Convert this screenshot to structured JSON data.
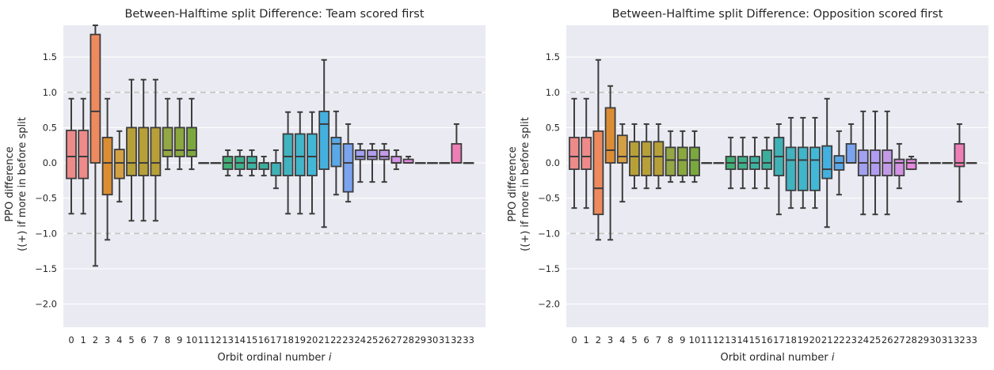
{
  "chart_data": [
    {
      "type": "box",
      "title": "Between-Halftime split Difference: Team scored first",
      "xlabel": "Orbit ordinal number i",
      "ylabel": "PPO difference\n((+) if more in before split",
      "ylim": [
        -2.33,
        1.95
      ],
      "yticks": [
        -2.0,
        -1.5,
        -1.0,
        -0.5,
        0.0,
        0.5,
        1.0,
        1.5
      ],
      "ytick_labels": [
        "−2.0",
        "−1.5",
        "−1.0",
        "−0.5",
        "0.0",
        "0.5",
        "1.0",
        "1.5"
      ],
      "categories": [
        "0",
        "1",
        "2",
        "3",
        "4",
        "5",
        "6",
        "7",
        "8",
        "9",
        "10",
        "11",
        "12",
        "13",
        "14",
        "15",
        "16",
        "17",
        "18",
        "19",
        "20",
        "21",
        "22",
        "23",
        "24",
        "25",
        "26",
        "27",
        "28",
        "29",
        "30",
        "31",
        "32",
        "33"
      ],
      "reference_lines": [
        1.0,
        -1.0
      ],
      "grid": true,
      "boxes": [
        {
          "low": -0.72,
          "q1": -0.22,
          "median": 0.09,
          "q3": 0.46,
          "high": 0.91
        },
        {
          "low": -0.72,
          "q1": -0.22,
          "median": 0.09,
          "q3": 0.46,
          "high": 0.91
        },
        {
          "low": -1.46,
          "q1": 0.0,
          "median": 0.73,
          "q3": 1.82,
          "high": 1.95
        },
        {
          "low": -1.09,
          "q1": -0.45,
          "median": 0.0,
          "q3": 0.36,
          "high": 0.91
        },
        {
          "low": -0.55,
          "q1": -0.22,
          "median": 0.0,
          "q3": 0.19,
          "high": 0.45
        },
        {
          "low": -0.82,
          "q1": -0.18,
          "median": 0.0,
          "q3": 0.5,
          "high": 1.18
        },
        {
          "low": -0.82,
          "q1": -0.18,
          "median": 0.0,
          "q3": 0.5,
          "high": 1.18
        },
        {
          "low": -0.82,
          "q1": -0.18,
          "median": 0.0,
          "q3": 0.5,
          "high": 1.18
        },
        {
          "low": -0.09,
          "q1": 0.09,
          "median": 0.18,
          "q3": 0.5,
          "high": 0.91
        },
        {
          "low": -0.09,
          "q1": 0.09,
          "median": 0.18,
          "q3": 0.5,
          "high": 0.91
        },
        {
          "low": -0.09,
          "q1": 0.09,
          "median": 0.18,
          "q3": 0.5,
          "high": 0.91
        },
        {
          "low": 0.0,
          "q1": 0.0,
          "median": 0.0,
          "q3": 0.0,
          "high": 0.0
        },
        {
          "low": 0.0,
          "q1": 0.0,
          "median": 0.0,
          "q3": 0.0,
          "high": 0.0
        },
        {
          "low": -0.18,
          "q1": -0.09,
          "median": 0.0,
          "q3": 0.09,
          "high": 0.18
        },
        {
          "low": -0.18,
          "q1": -0.09,
          "median": 0.0,
          "q3": 0.09,
          "high": 0.18
        },
        {
          "low": -0.18,
          "q1": -0.09,
          "median": 0.0,
          "q3": 0.09,
          "high": 0.18
        },
        {
          "low": -0.18,
          "q1": -0.09,
          "median": 0.0,
          "q3": 0.0,
          "high": 0.09
        },
        {
          "low": -0.36,
          "q1": -0.18,
          "median": 0.0,
          "q3": 0.0,
          "high": 0.18
        },
        {
          "low": -0.72,
          "q1": -0.18,
          "median": 0.09,
          "q3": 0.41,
          "high": 0.72
        },
        {
          "low": -0.72,
          "q1": -0.18,
          "median": 0.09,
          "q3": 0.41,
          "high": 0.72
        },
        {
          "low": -0.72,
          "q1": -0.18,
          "median": 0.09,
          "q3": 0.41,
          "high": 0.72
        },
        {
          "low": -0.91,
          "q1": -0.09,
          "median": 0.55,
          "q3": 0.73,
          "high": 1.46
        },
        {
          "low": -0.45,
          "q1": -0.05,
          "median": 0.27,
          "q3": 0.36,
          "high": 0.73
        },
        {
          "low": -0.55,
          "q1": -0.41,
          "median": 0.0,
          "q3": 0.27,
          "high": 0.55
        },
        {
          "low": -0.27,
          "q1": 0.05,
          "median": 0.09,
          "q3": 0.18,
          "high": 0.27
        },
        {
          "low": -0.27,
          "q1": 0.05,
          "median": 0.09,
          "q3": 0.18,
          "high": 0.27
        },
        {
          "low": -0.27,
          "q1": 0.05,
          "median": 0.09,
          "q3": 0.18,
          "high": 0.27
        },
        {
          "low": -0.09,
          "q1": 0.0,
          "median": 0.0,
          "q3": 0.09,
          "high": 0.18
        },
        {
          "low": 0.0,
          "q1": 0.0,
          "median": 0.0,
          "q3": 0.05,
          "high": 0.09
        },
        {
          "low": 0.0,
          "q1": 0.0,
          "median": 0.0,
          "q3": 0.0,
          "high": 0.0
        },
        {
          "low": 0.0,
          "q1": 0.0,
          "median": 0.0,
          "q3": 0.0,
          "high": 0.0
        },
        {
          "low": 0.0,
          "q1": 0.0,
          "median": 0.0,
          "q3": 0.0,
          "high": 0.0
        },
        {
          "low": 0.0,
          "q1": 0.0,
          "median": 0.0,
          "q3": 0.27,
          "high": 0.55
        },
        {
          "low": 0.0,
          "q1": 0.0,
          "median": 0.0,
          "q3": 0.0,
          "high": 0.0
        }
      ]
    },
    {
      "type": "box",
      "title": "Between-Halftime split Difference: Opposition scored first",
      "xlabel": "Orbit ordinal number i",
      "ylabel": "PPO difference\n((+) if more in before split",
      "ylim": [
        -2.33,
        1.95
      ],
      "yticks": [
        -2.0,
        -1.5,
        -1.0,
        -0.5,
        0.0,
        0.5,
        1.0,
        1.5
      ],
      "ytick_labels": [
        "−2.0",
        "−1.5",
        "−1.0",
        "−0.5",
        "0.0",
        "0.5",
        "1.0",
        "1.5"
      ],
      "categories": [
        "0",
        "1",
        "2",
        "3",
        "4",
        "5",
        "6",
        "7",
        "8",
        "9",
        "10",
        "11",
        "12",
        "13",
        "14",
        "15",
        "16",
        "17",
        "18",
        "19",
        "20",
        "21",
        "22",
        "23",
        "24",
        "25",
        "26",
        "27",
        "28",
        "29",
        "30",
        "31",
        "32",
        "33"
      ],
      "reference_lines": [
        1.0,
        -1.0
      ],
      "grid": true,
      "boxes": [
        {
          "low": -0.64,
          "q1": -0.09,
          "median": 0.09,
          "q3": 0.36,
          "high": 0.91
        },
        {
          "low": -0.64,
          "q1": -0.09,
          "median": 0.09,
          "q3": 0.36,
          "high": 0.91
        },
        {
          "low": -1.09,
          "q1": -0.73,
          "median": -0.36,
          "q3": 0.45,
          "high": 1.46
        },
        {
          "low": -1.09,
          "q1": 0.0,
          "median": 0.18,
          "q3": 0.78,
          "high": 1.09
        },
        {
          "low": -0.55,
          "q1": 0.0,
          "median": 0.09,
          "q3": 0.39,
          "high": 0.55
        },
        {
          "low": -0.36,
          "q1": -0.18,
          "median": 0.09,
          "q3": 0.3,
          "high": 0.55
        },
        {
          "low": -0.36,
          "q1": -0.18,
          "median": 0.09,
          "q3": 0.3,
          "high": 0.55
        },
        {
          "low": -0.36,
          "q1": -0.18,
          "median": 0.09,
          "q3": 0.3,
          "high": 0.55
        },
        {
          "low": -0.27,
          "q1": -0.18,
          "median": 0.04,
          "q3": 0.22,
          "high": 0.45
        },
        {
          "low": -0.27,
          "q1": -0.18,
          "median": 0.04,
          "q3": 0.22,
          "high": 0.45
        },
        {
          "low": -0.27,
          "q1": -0.18,
          "median": 0.04,
          "q3": 0.22,
          "high": 0.45
        },
        {
          "low": 0.0,
          "q1": 0.0,
          "median": 0.0,
          "q3": 0.0,
          "high": 0.0
        },
        {
          "low": 0.0,
          "q1": 0.0,
          "median": 0.0,
          "q3": 0.0,
          "high": 0.0
        },
        {
          "low": -0.36,
          "q1": -0.09,
          "median": 0.0,
          "q3": 0.09,
          "high": 0.36
        },
        {
          "low": -0.36,
          "q1": -0.09,
          "median": 0.0,
          "q3": 0.09,
          "high": 0.36
        },
        {
          "low": -0.36,
          "q1": -0.09,
          "median": 0.0,
          "q3": 0.09,
          "high": 0.36
        },
        {
          "low": -0.36,
          "q1": -0.09,
          "median": 0.0,
          "q3": 0.18,
          "high": 0.36
        },
        {
          "low": -0.73,
          "q1": -0.18,
          "median": 0.09,
          "q3": 0.36,
          "high": 0.55
        },
        {
          "low": -0.64,
          "q1": -0.39,
          "median": 0.04,
          "q3": 0.22,
          "high": 0.64
        },
        {
          "low": -0.64,
          "q1": -0.39,
          "median": 0.04,
          "q3": 0.22,
          "high": 0.64
        },
        {
          "low": -0.64,
          "q1": -0.39,
          "median": 0.04,
          "q3": 0.22,
          "high": 0.64
        },
        {
          "low": -0.91,
          "q1": -0.22,
          "median": -0.09,
          "q3": 0.24,
          "high": 0.91
        },
        {
          "low": -0.45,
          "q1": -0.1,
          "median": 0.0,
          "q3": 0.1,
          "high": 0.45
        },
        {
          "low": 0.0,
          "q1": 0.0,
          "median": 0.0,
          "q3": 0.27,
          "high": 0.55
        },
        {
          "low": -0.73,
          "q1": -0.18,
          "median": 0.0,
          "q3": 0.18,
          "high": 0.73
        },
        {
          "low": -0.73,
          "q1": -0.18,
          "median": 0.0,
          "q3": 0.18,
          "high": 0.73
        },
        {
          "low": -0.73,
          "q1": -0.18,
          "median": 0.0,
          "q3": 0.18,
          "high": 0.73
        },
        {
          "low": -0.36,
          "q1": -0.18,
          "median": 0.0,
          "q3": 0.05,
          "high": 0.27
        },
        {
          "low": -0.09,
          "q1": -0.09,
          "median": 0.0,
          "q3": 0.05,
          "high": 0.09
        },
        {
          "low": 0.0,
          "q1": 0.0,
          "median": 0.0,
          "q3": 0.0,
          "high": 0.0
        },
        {
          "low": 0.0,
          "q1": 0.0,
          "median": 0.0,
          "q3": 0.0,
          "high": 0.0
        },
        {
          "low": 0.0,
          "q1": 0.0,
          "median": 0.0,
          "q3": 0.0,
          "high": 0.0
        },
        {
          "low": -0.55,
          "q1": -0.05,
          "median": 0.0,
          "q3": 0.27,
          "high": 0.55
        },
        {
          "low": 0.0,
          "q1": 0.0,
          "median": 0.0,
          "q3": 0.0,
          "high": 0.0
        }
      ]
    }
  ],
  "palette": [
    "#ee8a8a",
    "#ee8a8a",
    "#ee8a5e",
    "#dc8d33",
    "#d4a044",
    "#b8a039",
    "#b8a039",
    "#b8a039",
    "#93a844",
    "#8aa83e",
    "#7aa83e",
    "#53b05f",
    "#4fb06a",
    "#40b077",
    "#3fb08a",
    "#3eb2a1",
    "#3caf9c",
    "#3fb2b8",
    "#41b3c0",
    "#41b5ca",
    "#42b8d6",
    "#44b0df",
    "#5aa8e6",
    "#7aa4ef",
    "#a2a0f0",
    "#b19cef",
    "#c29ae8",
    "#d493e4",
    "#e78ae0",
    "#ee88d0",
    "#ef8ac8",
    "#ef89bc",
    "#ee7fb6",
    "#ee89b4"
  ]
}
